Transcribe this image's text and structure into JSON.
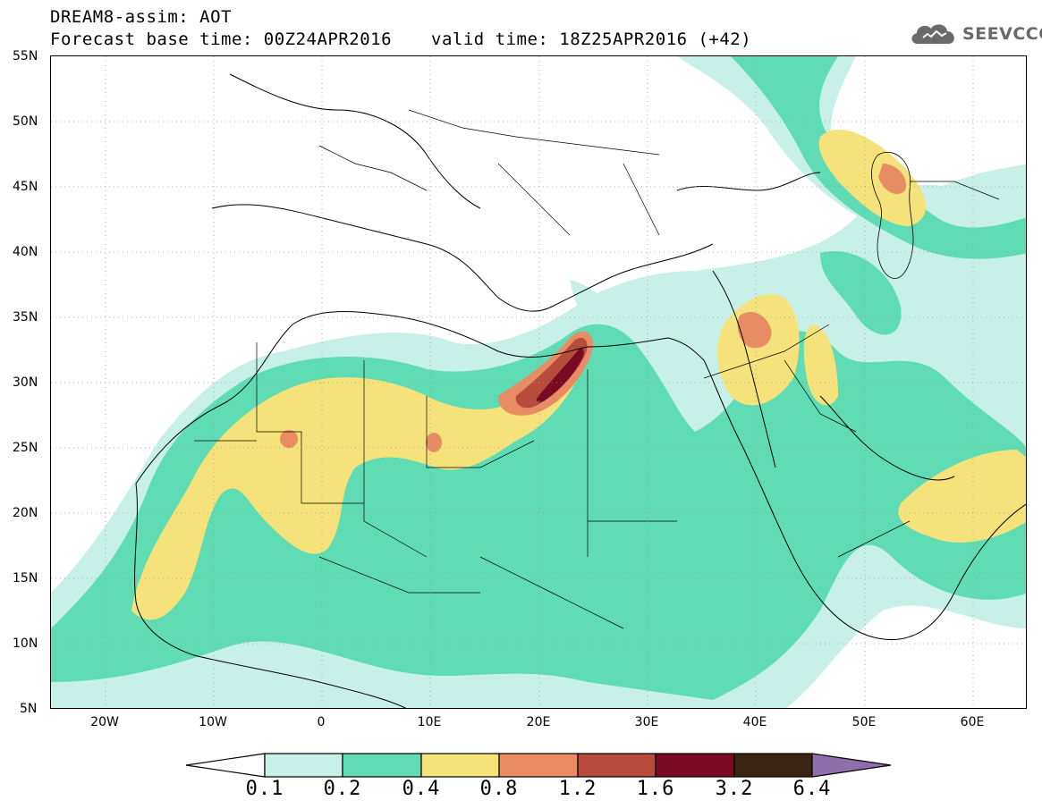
{
  "header": {
    "title": "DREAM8-assim: AOT",
    "base_time": "Forecast base time: 00Z24APR2016",
    "valid_time": "valid time: 18Z25APR2016 (+42)"
  },
  "logo": {
    "text": "SEEVCCC",
    "icon": "cloud-icon"
  },
  "map": {
    "region": "North Africa, Europe and Middle East",
    "lon_range": [
      -25,
      65
    ],
    "lat_range": [
      5,
      55
    ],
    "lat_labels": [
      "55N",
      "50N",
      "45N",
      "40N",
      "35N",
      "30N",
      "25N",
      "20N",
      "15N",
      "10N",
      "5N"
    ],
    "lon_labels": [
      "20W",
      "10W",
      "0",
      "10E",
      "20E",
      "30E",
      "40E",
      "50E",
      "60E"
    ],
    "gridlines": "dotted",
    "variable": "Aerosol Optical Thickness (AOT)"
  },
  "colorbar": {
    "labels": [
      "0.1",
      "0.2",
      "0.4",
      "0.8",
      "1.2",
      "1.6",
      "3.2",
      "6.4"
    ],
    "colors": [
      "#ffffff",
      "#c6f0e8",
      "#5fdcb4",
      "#f5e27a",
      "#e88c64",
      "#b74c3c",
      "#7a0a24",
      "#3a2414",
      "#8e6eab"
    ],
    "extend": "both"
  }
}
